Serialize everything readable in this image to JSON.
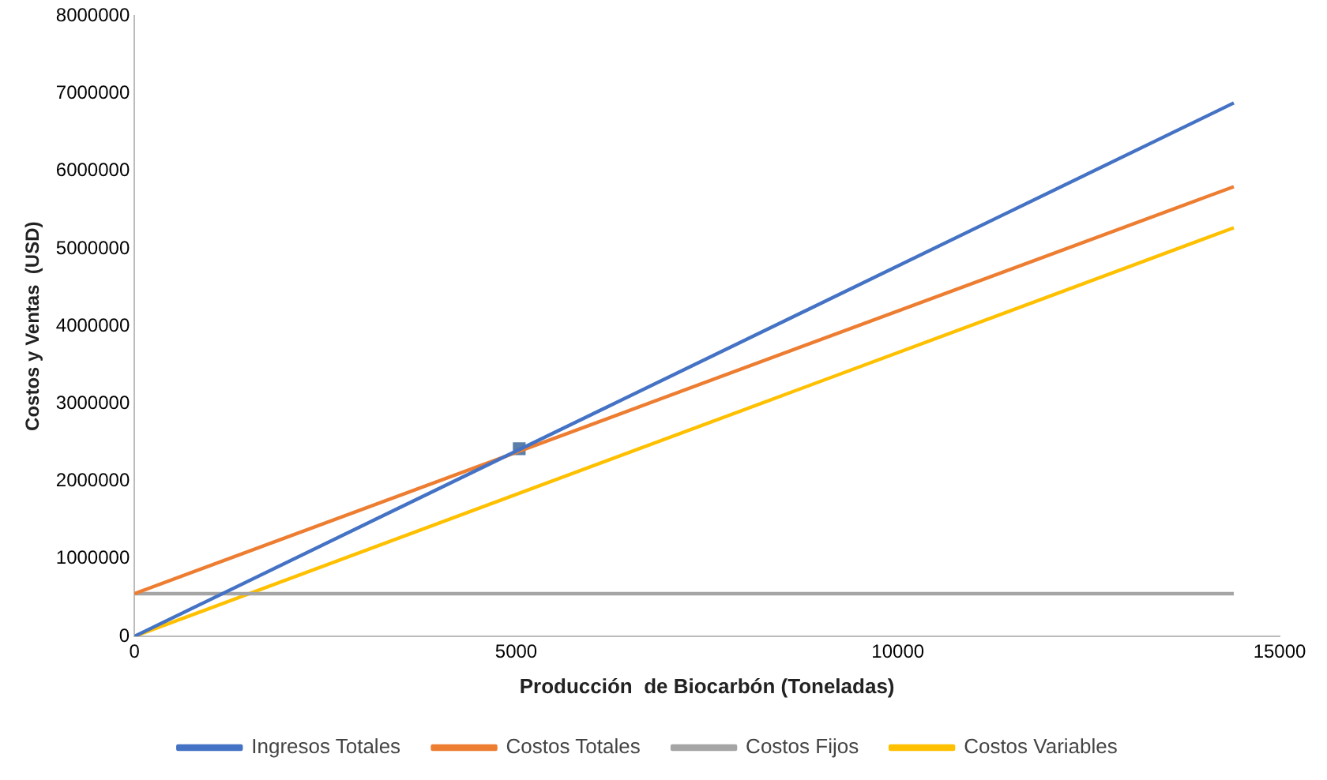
{
  "chart_data": {
    "type": "line",
    "xlabel": "Producción  de Biocarbón (Toneladas)",
    "ylabel": "Costos y Ventas  (USD)",
    "xlim": [
      0,
      15000
    ],
    "xticks": [
      0,
      5000,
      10000,
      15000
    ],
    "ylim": [
      0,
      8000000
    ],
    "yticks": [
      0,
      1000000,
      2000000,
      3000000,
      4000000,
      5000000,
      6000000,
      7000000,
      8000000
    ],
    "grid": false,
    "legend": "bottom",
    "marker": "none",
    "series": [
      {
        "name": "Ingresos Totales",
        "color": "#4472c4",
        "x": [
          0,
          14400
        ],
        "values": [
          0,
          6880000
        ]
      },
      {
        "name": "Costos Totales",
        "color": "#ed7d31",
        "x": [
          0,
          14400
        ],
        "values": [
          550000,
          5800000
        ]
      },
      {
        "name": "Costos Fijos",
        "color": "#a5a5a5",
        "x": [
          0,
          14400
        ],
        "values": [
          550000,
          550000
        ]
      },
      {
        "name": "Costos Variables",
        "color": "#ffc000",
        "x": [
          0,
          14400
        ],
        "values": [
          0,
          5270000
        ]
      },
      {
        "type": "scatter",
        "marker": "square",
        "color": "#5b7fa8",
        "x": [
          5040
        ],
        "values": [
          2420000
        ]
      }
    ]
  }
}
